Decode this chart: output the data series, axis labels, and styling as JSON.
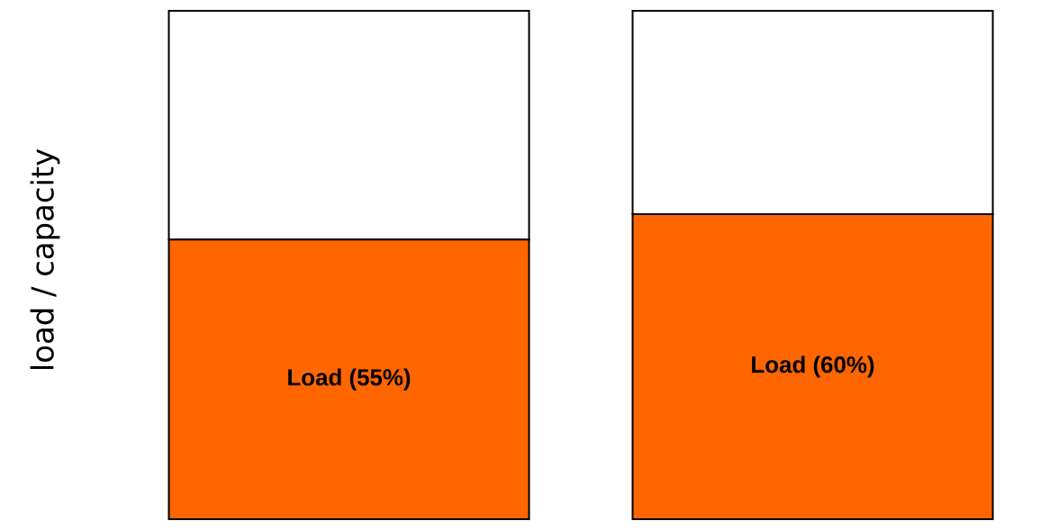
{
  "chart_data": {
    "type": "bar",
    "stacked": true,
    "ylabel": "load / capacity",
    "categories": [
      null,
      null
    ],
    "ylim": [
      0,
      100
    ],
    "series": [
      {
        "color": "#ff6600",
        "values": [
          55,
          60
        ],
        "value_labels": [
          "Load (55%)",
          "Load (60%)"
        ]
      },
      {
        "color": "#ffffff",
        "values": [
          45,
          40
        ]
      }
    ]
  }
}
